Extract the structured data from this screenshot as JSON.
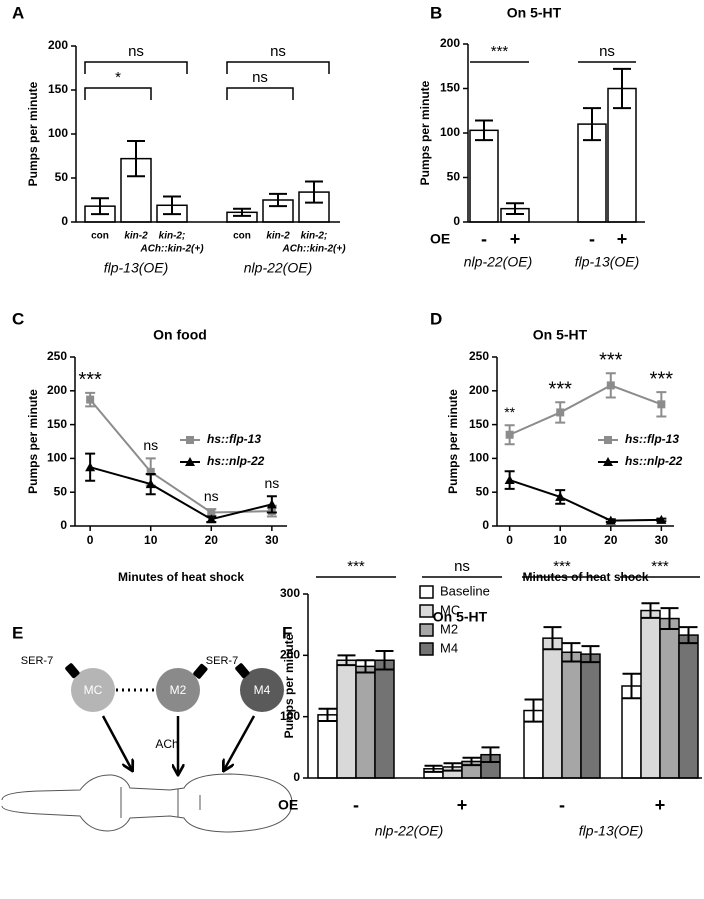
{
  "panels": [
    "A",
    "B",
    "C",
    "D",
    "E",
    "F"
  ],
  "diagram": {
    "receptor_labels": [
      "SER-7",
      "SER-7"
    ],
    "neurons": [
      "MC",
      "M2",
      "M4"
    ],
    "transmitter": "ACh"
  },
  "chart_data": [
    {
      "type": "bar",
      "ylabel": "Pumps per minute",
      "categories": [
        [
          "con"
        ],
        [
          "kin-2"
        ],
        [
          "kin-2;",
          "ACh::kin-2(+)"
        ],
        [
          "con"
        ],
        [
          "kin-2"
        ],
        [
          "kin-2;",
          "ACh::kin-2(+)"
        ]
      ],
      "values": [
        18,
        72,
        19,
        11,
        25,
        34
      ],
      "errors": [
        9,
        20,
        10,
        4,
        7,
        12
      ],
      "color": "#ffffff",
      "groups": [
        "flp-13(OE)",
        "nlp-22(OE)"
      ],
      "annotations": [
        "*",
        "ns",
        "ns",
        "ns"
      ],
      "ylim": [
        0,
        200
      ],
      "yticks": [
        0,
        50,
        100,
        150,
        200
      ]
    },
    {
      "type": "bar",
      "title": "On 5-HT",
      "ylabel": "Pumps per minute",
      "xlabel": "OE",
      "categories": [
        "-",
        "+",
        "-",
        "+"
      ],
      "values": [
        103,
        15,
        110,
        150
      ],
      "errors": [
        11,
        6,
        18,
        22
      ],
      "color": "#ffffff",
      "groups": [
        "nlp-22(OE)",
        "flp-13(OE)"
      ],
      "annotations": [
        "***",
        "ns"
      ],
      "ylim": [
        0,
        200
      ],
      "yticks": [
        0,
        50,
        100,
        150,
        200
      ]
    },
    {
      "type": "line",
      "title": "On food",
      "ylabel": "Pumps per minute",
      "xlabel": "Minutes of heat shock",
      "x": [
        0,
        10,
        20,
        30
      ],
      "series": [
        {
          "name": "hs::flp-13",
          "color": "#8c8c8c",
          "marker": "square",
          "values": [
            187,
            80,
            20,
            22
          ],
          "errors": [
            10,
            20,
            5,
            8
          ]
        },
        {
          "name": "hs::nlp-22",
          "color": "#000000",
          "marker": "triangle",
          "values": [
            87,
            62,
            10,
            32
          ],
          "errors": [
            20,
            15,
            4,
            12
          ]
        }
      ],
      "annotations": [
        "***",
        "ns",
        "ns",
        "ns"
      ],
      "legend": "right",
      "xlim": [
        -2.5,
        32.5
      ],
      "xticks": [
        0,
        10,
        20,
        30
      ],
      "ylim": [
        0,
        250
      ],
      "yticks": [
        0,
        50,
        100,
        150,
        200,
        250
      ]
    },
    {
      "type": "line",
      "title": "On 5-HT",
      "ylabel": "Pumps per minute",
      "xlabel": "Minutes of heat shock",
      "x": [
        0,
        10,
        20,
        30
      ],
      "series": [
        {
          "name": "hs::flp-13",
          "color": "#8c8c8c",
          "marker": "square",
          "values": [
            135,
            168,
            208,
            180
          ],
          "errors": [
            14,
            15,
            18,
            18
          ]
        },
        {
          "name": "hs::nlp-22",
          "color": "#000000",
          "marker": "triangle",
          "values": [
            68,
            43,
            8,
            9
          ],
          "errors": [
            13,
            10,
            2,
            2
          ]
        }
      ],
      "annotations": [
        "**",
        "***",
        "***",
        "***"
      ],
      "legend": "right",
      "xlim": [
        -2.5,
        32.5
      ],
      "xticks": [
        0,
        10,
        20,
        30
      ],
      "ylim": [
        0,
        250
      ],
      "yticks": [
        0,
        50,
        100,
        150,
        200,
        250
      ]
    },
    {
      "type": "bar",
      "title": "On 5-HT",
      "ylabel": "Pumps per minute",
      "xlabel": "OE",
      "categories": [
        "-",
        "+",
        "-",
        "+"
      ],
      "series": [
        {
          "name": "Baseline",
          "color": "#ffffff",
          "values": [
            103,
            15,
            110,
            150
          ],
          "errors": [
            10,
            5,
            18,
            20
          ]
        },
        {
          "name": "MC",
          "color": "#d9d9d9",
          "values": [
            192,
            18,
            228,
            273
          ],
          "errors": [
            8,
            6,
            18,
            12
          ]
        },
        {
          "name": "M2",
          "color": "#a6a6a6",
          "values": [
            182,
            27,
            205,
            260
          ],
          "errors": [
            10,
            6,
            15,
            17
          ]
        },
        {
          "name": "M4",
          "color": "#737373",
          "values": [
            192,
            38,
            202,
            233
          ],
          "errors": [
            15,
            12,
            13,
            13
          ]
        }
      ],
      "groups": [
        "nlp-22(OE)",
        "flp-13(OE)"
      ],
      "annotations": [
        "***",
        "ns",
        "***",
        "***"
      ],
      "legend": "top",
      "ylim": [
        0,
        300
      ],
      "yticks": [
        0,
        100,
        200,
        300
      ]
    }
  ]
}
